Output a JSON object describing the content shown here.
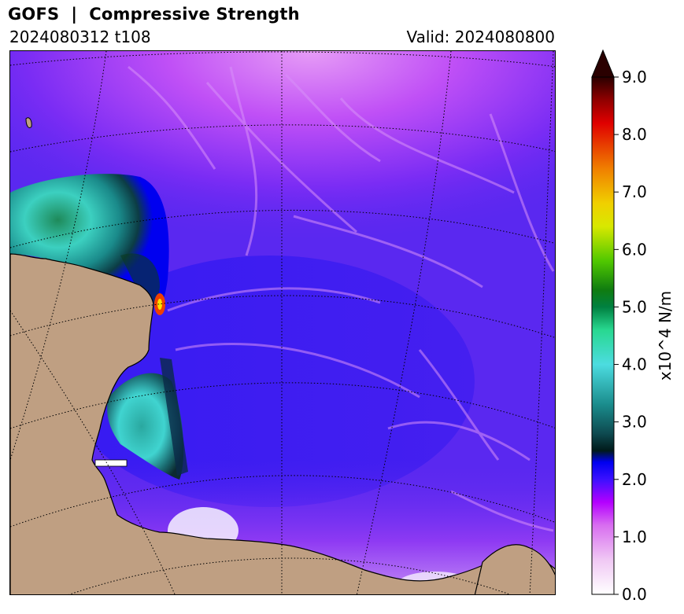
{
  "header": {
    "title": "GOFS  |  Compressive Strength",
    "init_label": "2024080312 t108",
    "valid_label": "Valid: 2024080800"
  },
  "colorbar": {
    "label": "x10^4 N/m",
    "ticks": [
      "0.0",
      "1.0",
      "2.0",
      "3.0",
      "4.0",
      "5.0",
      "6.0",
      "7.0",
      "8.0",
      "9.0"
    ],
    "extend": "max",
    "stops": [
      {
        "v": 0.0,
        "c": "#ffffff"
      },
      {
        "v": 0.6,
        "c": "#f0c8f4"
      },
      {
        "v": 1.2,
        "c": "#d86ef0"
      },
      {
        "v": 1.6,
        "c": "#b400ff"
      },
      {
        "v": 2.0,
        "c": "#3c10ff"
      },
      {
        "v": 2.3,
        "c": "#0000f0"
      },
      {
        "v": 2.5,
        "c": "#001a1a"
      },
      {
        "v": 2.8,
        "c": "#0e4a50"
      },
      {
        "v": 3.3,
        "c": "#1a8c8c"
      },
      {
        "v": 4.0,
        "c": "#4cdce0"
      },
      {
        "v": 4.6,
        "c": "#28d890"
      },
      {
        "v": 5.0,
        "c": "#008040"
      },
      {
        "v": 5.3,
        "c": "#107c10"
      },
      {
        "v": 5.8,
        "c": "#50c800"
      },
      {
        "v": 6.4,
        "c": "#d8e800"
      },
      {
        "v": 6.8,
        "c": "#f0d000"
      },
      {
        "v": 7.4,
        "c": "#f08000"
      },
      {
        "v": 8.2,
        "c": "#e00000"
      },
      {
        "v": 8.6,
        "c": "#900000"
      },
      {
        "v": 9.0,
        "c": "#2a0000"
      }
    ]
  },
  "map": {
    "land_color": "#bf9f82",
    "base_field_color": "#5a28f0"
  }
}
